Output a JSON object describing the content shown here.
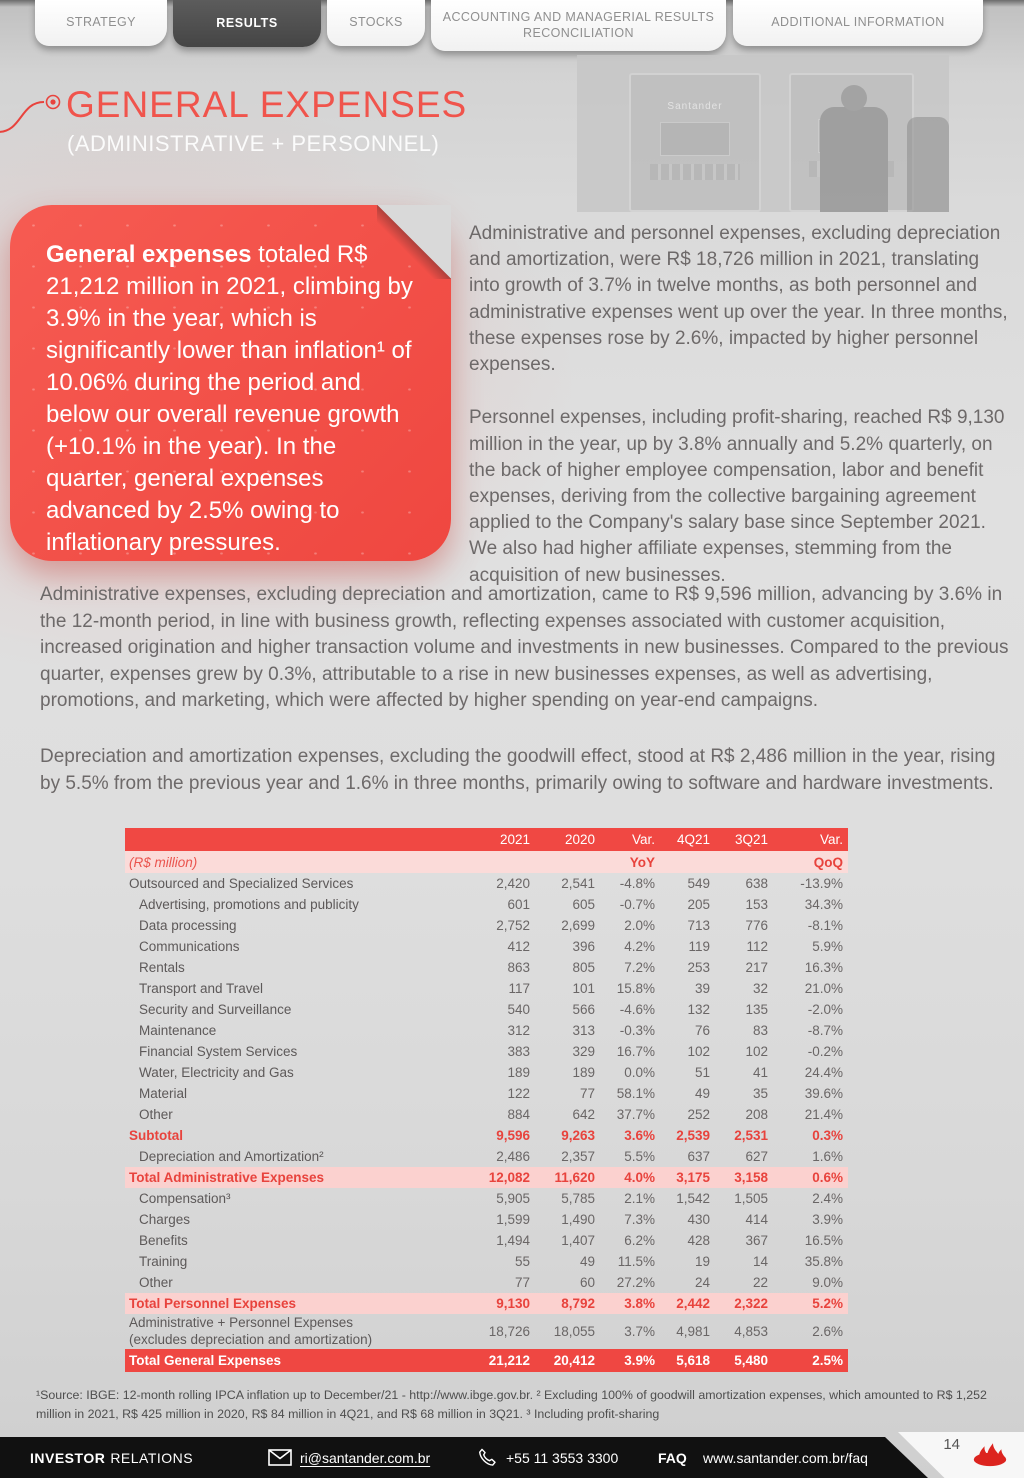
{
  "tabs": [
    {
      "label": "STRATEGY",
      "active": false
    },
    {
      "label": "RESULTS",
      "active": true
    },
    {
      "label": "STOCKS",
      "active": false
    },
    {
      "label": "ACCOUNTING AND MANAGERIAL RESULTS RECONCILIATION",
      "active": false
    },
    {
      "label": "ADDITIONAL INFORMATION",
      "active": false
    }
  ],
  "title": {
    "heading": "GENERAL EXPENSES",
    "subheading": "(ADMINISTRATIVE + PERSONNEL)"
  },
  "photo": {
    "brand": "Santander"
  },
  "callout": {
    "lead": "General expenses",
    "rest": " totaled R$ 21,212 million in 2021, climbing by 3.9% in the year, which is significantly lower than inflation¹ of 10.06% during the period and below our overall revenue growth (+10.1% in the year). In the quarter, general expenses advanced by 2.5% owing to inflationary pressures."
  },
  "paragraphs": {
    "right1": "Administrative and personnel expenses, excluding depreciation and amortization, were R$ 18,726 million in 2021, translating into growth of 3.7% in twelve months, as both personnel and administrative expenses went up over the year. In three months, these expenses rose by 2.6%, impacted by higher personnel expenses.",
    "right2": "Personnel expenses, including profit-sharing, reached R$ 9,130 million in the year, up by 3.8% annually and 5.2% quarterly, on the back of higher employee compensation, labor and benefit expenses, deriving from the collective bargaining agreement applied to the Company's salary base since September 2021. We also had higher affiliate expenses, stemming from the acquisition of new businesses.",
    "full1": "Administrative expenses, excluding depreciation and amortization, came to R$ 9,596 million, advancing by 3.6% in the 12-month period, in line with business growth, reflecting expenses associated with customer acquisition, increased origination and higher transaction volume and investments in new businesses. Compared to the previous quarter, expenses grew by 0.3%, attributable to a rise in new businesses expenses, as well as advertising, promotions, and marketing, which were affected by higher spending on year-end campaigns.",
    "full2": "Depreciation and amortization expenses, excluding the goodwill effect, stood at R$ 2,486 million in the year, rising by 5.5% from the previous year and 1.6% in three months, primarily owing to software and hardware investments."
  },
  "table": {
    "header": [
      "2021",
      "2020",
      "Var.",
      "4Q21",
      "3Q21",
      "Var."
    ],
    "subheader": {
      "label": "(R$ million)",
      "yoy": "YoY",
      "qoq": "QoQ"
    },
    "rows": [
      {
        "label": "Outsourced and Specialized Services",
        "indent": 0,
        "style": "plain",
        "values": [
          "2,420",
          "2,541",
          "-4.8%",
          "549",
          "638",
          "-13.9%"
        ]
      },
      {
        "label": "Advertising, promotions and publicity",
        "indent": 1,
        "style": "plain",
        "values": [
          "601",
          "605",
          "-0.7%",
          "205",
          "153",
          "34.3%"
        ]
      },
      {
        "label": "Data processing",
        "indent": 1,
        "style": "plain",
        "values": [
          "2,752",
          "2,699",
          "2.0%",
          "713",
          "776",
          "-8.1%"
        ]
      },
      {
        "label": "Communications",
        "indent": 1,
        "style": "plain",
        "values": [
          "412",
          "396",
          "4.2%",
          "119",
          "112",
          "5.9%"
        ]
      },
      {
        "label": "Rentals",
        "indent": 1,
        "style": "plain",
        "values": [
          "863",
          "805",
          "7.2%",
          "253",
          "217",
          "16.3%"
        ]
      },
      {
        "label": "Transport and Travel",
        "indent": 1,
        "style": "plain",
        "values": [
          "117",
          "101",
          "15.8%",
          "39",
          "32",
          "21.0%"
        ]
      },
      {
        "label": "Security and Surveillance",
        "indent": 1,
        "style": "plain",
        "values": [
          "540",
          "566",
          "-4.6%",
          "132",
          "135",
          "-2.0%"
        ]
      },
      {
        "label": "Maintenance",
        "indent": 1,
        "style": "plain",
        "values": [
          "312",
          "313",
          "-0.3%",
          "76",
          "83",
          "-8.7%"
        ]
      },
      {
        "label": "Financial System Services",
        "indent": 1,
        "style": "plain",
        "values": [
          "383",
          "329",
          "16.7%",
          "102",
          "102",
          "-0.2%"
        ]
      },
      {
        "label": "Water, Electricity and Gas",
        "indent": 1,
        "style": "plain",
        "values": [
          "189",
          "189",
          "0.0%",
          "51",
          "41",
          "24.4%"
        ]
      },
      {
        "label": "Material",
        "indent": 1,
        "style": "plain",
        "values": [
          "122",
          "77",
          "58.1%",
          "49",
          "35",
          "39.6%"
        ]
      },
      {
        "label": "Other",
        "indent": 1,
        "style": "plain",
        "values": [
          "884",
          "642",
          "37.7%",
          "252",
          "208",
          "21.4%"
        ]
      },
      {
        "label": "Subtotal",
        "indent": 0,
        "style": "subtotal",
        "values": [
          "9,596",
          "9,263",
          "3.6%",
          "2,539",
          "2,531",
          "0.3%"
        ]
      },
      {
        "label": "Depreciation and Amortization²",
        "indent": 1,
        "style": "plain",
        "values": [
          "2,486",
          "2,357",
          "5.5%",
          "637",
          "627",
          "1.6%"
        ]
      },
      {
        "label": "Total Administrative Expenses",
        "indent": 0,
        "style": "highlight",
        "values": [
          "12,082",
          "11,620",
          "4.0%",
          "3,175",
          "3,158",
          "0.6%"
        ]
      },
      {
        "label": "Compensation³",
        "indent": 1,
        "style": "plain",
        "values": [
          "5,905",
          "5,785",
          "2.1%",
          "1,542",
          "1,505",
          "2.4%"
        ]
      },
      {
        "label": "Charges",
        "indent": 1,
        "style": "plain",
        "values": [
          "1,599",
          "1,490",
          "7.3%",
          "430",
          "414",
          "3.9%"
        ]
      },
      {
        "label": "Benefits",
        "indent": 1,
        "style": "plain",
        "values": [
          "1,494",
          "1,407",
          "6.2%",
          "428",
          "367",
          "16.5%"
        ]
      },
      {
        "label": "Training",
        "indent": 1,
        "style": "plain",
        "values": [
          "55",
          "49",
          "11.5%",
          "19",
          "14",
          "35.8%"
        ]
      },
      {
        "label": "Other",
        "indent": 1,
        "style": "plain",
        "values": [
          "77",
          "60",
          "27.2%",
          "24",
          "22",
          "9.0%"
        ]
      },
      {
        "label": "Total Personnel Expenses",
        "indent": 0,
        "style": "highlight",
        "values": [
          "9,130",
          "8,792",
          "3.8%",
          "2,442",
          "2,322",
          "5.2%"
        ]
      },
      {
        "label": "Administrative + Personnel Expenses",
        "label2": "(excludes depreciation and amortization)",
        "indent": 0,
        "style": "twoline",
        "values": [
          "18,726",
          "18,055",
          "3.7%",
          "4,981",
          "4,853",
          "2.6%"
        ]
      },
      {
        "label": "Total General Expenses",
        "indent": 0,
        "style": "grand",
        "values": [
          "21,212",
          "20,412",
          "3.9%",
          "5,618",
          "5,480",
          "2.5%"
        ]
      }
    ]
  },
  "footnote": "¹Source: IBGE: 12-month rolling IPCA inflation up to December/21 - http://www.ibge.gov.br. ² Excluding 100% of goodwill amortization expenses, which amounted to R$ 1,252 million in 2021, R$ 425 million in 2020, R$ 84 million in 4Q21, and R$ 68 million in 3Q21. ³ Including profit-sharing",
  "footer": {
    "brand_bold": "INVESTOR",
    "brand_rest": "RELATIONS",
    "email": "ri@santander.com.br",
    "phone": "+55 11 3553 3300",
    "faq_label": "FAQ",
    "faq_url": "www.santander.com.br/faq",
    "page_number": "14"
  },
  "colors": {
    "accent_red": "#e8433d",
    "table_header_red": "#f04843",
    "pink_highlight": "#fbd1cf",
    "callout_red": "#f4564e",
    "grand_total_red": "#ef4742",
    "flame_red": "#dc241f",
    "footer_black": "#111111"
  }
}
